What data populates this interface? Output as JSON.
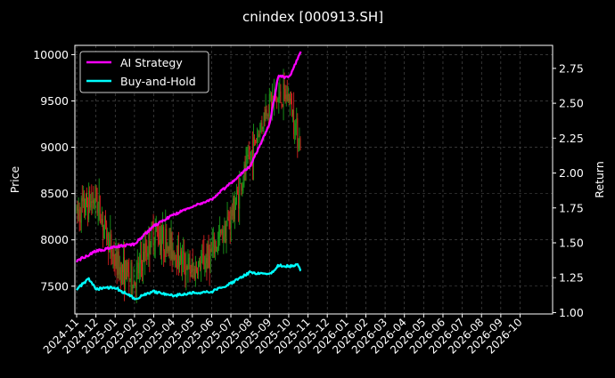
{
  "chart_data": {
    "type": "line",
    "title": "cnindex [000913.SH]",
    "ylabel_left": "Price",
    "ylabel_right": "Return",
    "y_left_range": [
      7200,
      10100
    ],
    "y_right_range": [
      0.99,
      2.915
    ],
    "y_left_ticks": [
      "7500",
      "8000",
      "8500",
      "9000",
      "9500",
      "10000"
    ],
    "y_right_ticks": [
      "1.00",
      "1.25",
      "1.50",
      "1.75",
      "2.00",
      "2.25",
      "2.50",
      "2.75"
    ],
    "x_ticks": [
      "2024-11",
      "2024-12",
      "2025-01",
      "2025-02",
      "2025-03",
      "2025-04",
      "2025-05",
      "2025-06",
      "2025-07",
      "2025-08",
      "2025-09",
      "2025-10",
      "2025-11",
      "2025-12",
      "2026-01",
      "2026-02",
      "2026-03",
      "2026-04",
      "2026-05",
      "2026-06",
      "2026-07",
      "2026-08",
      "2026-09",
      "2026-10"
    ],
    "grid": true,
    "legend_position": "top-left",
    "colors": {
      "background": "#000000",
      "text": "#ffffff",
      "grid": "#555555",
      "up": "#1a9a1a",
      "down": "#d62020",
      "ai": "#ff00ff",
      "bh": "#00ffff"
    },
    "series": [
      {
        "name": "AI Strategy",
        "axis": "right",
        "color": "#ff00ff",
        "x": [
          "2024-11",
          "2024-12",
          "2025-01",
          "2025-02",
          "2025-03",
          "2025-04",
          "2025-05",
          "2025-06",
          "2025-07",
          "2025-08",
          "2025-09",
          "2025-09-15",
          "2025-10",
          "2025-10-20"
        ],
        "values": [
          1.37,
          1.44,
          1.47,
          1.49,
          1.62,
          1.7,
          1.76,
          1.81,
          1.93,
          2.05,
          2.35,
          2.7,
          2.68,
          2.87
        ]
      },
      {
        "name": "Buy-and-Hold",
        "axis": "right",
        "color": "#00ffff",
        "x": [
          "2024-11",
          "2024-11-20",
          "2024-12",
          "2025-01",
          "2025-02",
          "2025-03",
          "2025-04",
          "2025-05",
          "2025-06",
          "2025-07",
          "2025-08",
          "2025-09",
          "2025-09-15",
          "2025-10",
          "2025-10-15",
          "2025-10-20"
        ],
        "values": [
          1.17,
          1.24,
          1.17,
          1.18,
          1.1,
          1.15,
          1.12,
          1.14,
          1.15,
          1.21,
          1.29,
          1.27,
          1.34,
          1.33,
          1.34,
          1.3
        ]
      },
      {
        "name": "",
        "axis": "left",
        "type": "candlestick",
        "x": [
          "2024-11",
          "2024-12",
          "2025-01",
          "2025-02",
          "2025-03",
          "2025-04",
          "2025-05",
          "2025-06",
          "2025-07",
          "2025-08",
          "2025-09",
          "2025-10",
          "2025-10-20"
        ],
        "values": [
          8300,
          8450,
          7750,
          7550,
          8100,
          7900,
          7650,
          7850,
          8250,
          8900,
          9500,
          9550,
          9000
        ]
      }
    ]
  }
}
